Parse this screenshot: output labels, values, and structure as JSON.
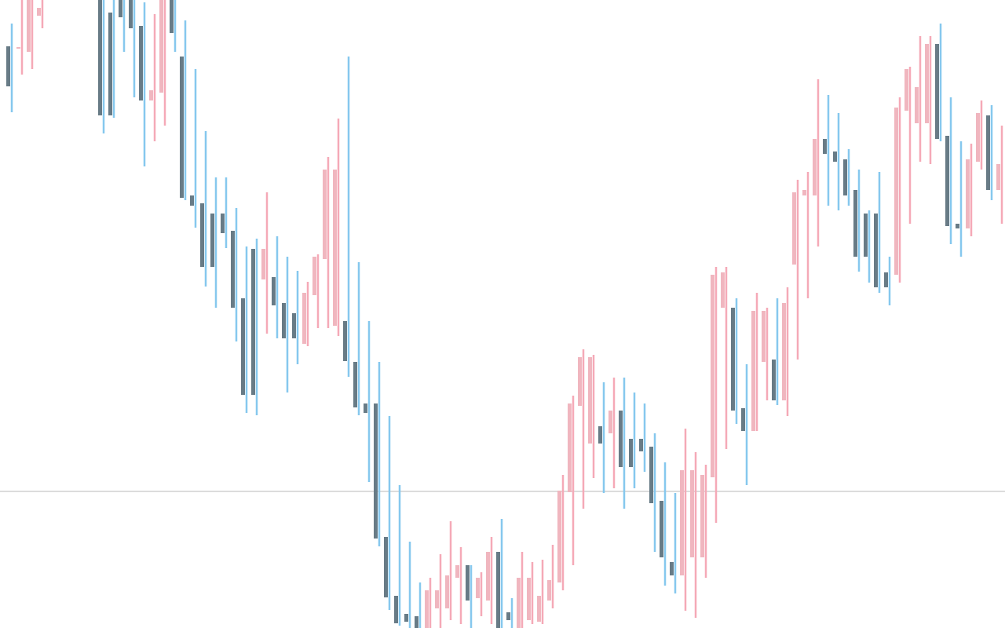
{
  "chart_data": {
    "type": "candlestick",
    "categories": [
      null,
      null,
      null,
      null,
      null,
      null,
      null,
      null,
      null,
      null,
      null,
      null,
      null,
      null,
      null,
      null,
      null,
      null,
      null,
      null,
      null,
      null,
      null,
      null,
      null,
      null,
      null,
      null,
      null,
      null,
      null,
      null,
      null,
      null,
      null,
      null,
      null,
      null,
      null,
      null,
      null,
      null,
      null,
      null,
      null,
      null,
      null,
      null,
      null,
      null,
      null,
      null,
      null,
      null,
      null,
      null,
      null,
      null,
      null,
      null,
      null,
      null,
      null,
      null,
      null,
      null,
      null,
      null,
      null,
      null,
      null,
      null,
      null,
      null,
      null,
      null,
      null,
      null,
      null,
      null,
      null,
      null,
      null,
      null,
      null,
      null,
      null,
      null,
      null,
      null,
      null,
      null,
      null,
      null,
      null,
      null,
      null,
      null
    ],
    "open": [
      741,
      738,
      734,
      780,
      null,
      null,
      null,
      null,
      null,
      800,
      784,
      800,
      800,
      767,
      672,
      682,
      800,
      728,
      551,
      541,
      528,
      528,
      506,
      420,
      483,
      444,
      447,
      414,
      401,
      362,
      424,
      470,
      385,
      391,
      339,
      286,
      286,
      116,
      41,
      18,
      15,
      0,
      25,
      25,
      64,
      80,
      38,
      35,
      97,
      20,
      0,
      10,
      8,
      35,
      58,
      173,
      283,
      235,
      257,
      248,
      277,
      241,
      241,
      231,
      162,
      84,
      67,
      90,
      90,
      192,
      408,
      408,
      280,
      251,
      339,
      342,
      290,
      463,
      551,
      551,
      623,
      607,
      597,
      558,
      528,
      528,
      453,
      450,
      659,
      643,
      643,
      744,
      627,
      515,
      509,
      594,
      653,
      558
    ],
    "high": [
      770,
      800,
      800,
      800,
      null,
      null,
      null,
      null,
      null,
      800,
      800,
      800,
      800,
      797,
      782,
      800,
      800,
      774,
      712,
      633,
      574,
      574,
      535,
      486,
      496,
      555,
      499,
      473,
      455,
      441,
      476,
      600,
      649,
      728,
      466,
      391,
      339,
      270,
      182,
      110,
      58,
      64,
      94,
      136,
      103,
      80,
      71,
      116,
      139,
      38,
      97,
      84,
      87,
      106,
      195,
      296,
      355,
      348,
      313,
      319,
      319,
      300,
      286,
      248,
      211,
      172,
      254,
      224,
      208,
      460,
      460,
      420,
      336,
      427,
      408,
      420,
      434,
      571,
      581,
      699,
      679,
      656,
      610,
      584,
      532,
      581,
      473,
      676,
      715,
      754,
      754,
      770,
      676,
      620,
      617,
      672,
      666,
      640
    ],
    "low": [
      657,
      705,
      712,
      764,
      null,
      null,
      null,
      null,
      null,
      630,
      650,
      734,
      676,
      588,
      620,
      640,
      734,
      545,
      510,
      435,
      408,
      484,
      365,
      274,
      271,
      375,
      369,
      300,
      336,
      359,
      382,
      382,
      372,
      320,
      271,
      186,
      104,
      23,
      3,
      0,
      0,
      0,
      0,
      10,
      5,
      0,
      15,
      5,
      0,
      0,
      0,
      5,
      5,
      25,
      48,
      80,
      152,
      191,
      172,
      178,
      152,
      178,
      199,
      97,
      54,
      44,
      22,
      13,
      64,
      134,
      228,
      260,
      182,
      251,
      290,
      284,
      270,
      342,
      420,
      486,
      538,
      532,
      538,
      454,
      440,
      427,
      411,
      440,
      515,
      594,
      591,
      620,
      489,
      473,
      499,
      584,
      545,
      515
    ],
    "close": [
      690,
      740,
      800,
      790,
      null,
      null,
      null,
      null,
      null,
      653,
      653,
      778,
      764,
      672,
      685,
      800,
      758,
      548,
      538,
      460,
      460,
      503,
      408,
      297,
      297,
      483,
      411,
      369,
      369,
      427,
      473,
      584,
      584,
      340,
      281,
      274,
      114,
      39,
      6,
      8,
      0,
      48,
      48,
      67,
      80,
      35,
      64,
      97,
      0,
      10,
      64,
      64,
      41,
      61,
      175,
      286,
      345,
      345,
      235,
      277,
      205,
      205,
      225,
      159,
      90,
      67,
      201,
      201,
      195,
      450,
      453,
      277,
      251,
      404,
      404,
      290,
      414,
      555,
      558,
      623,
      604,
      594,
      551,
      473,
      473,
      434,
      434,
      663,
      712,
      689,
      744,
      623,
      512,
      509,
      597,
      656,
      558,
      591
    ],
    "ylim": [
      0,
      800
    ],
    "up_color": "#f0b6bf",
    "down_color": "#687b86",
    "up_wick_color": "#f5a9b7",
    "down_wick_color": "#86c8ee",
    "price_line": 174,
    "price_line_color": "#dcdcdc"
  }
}
